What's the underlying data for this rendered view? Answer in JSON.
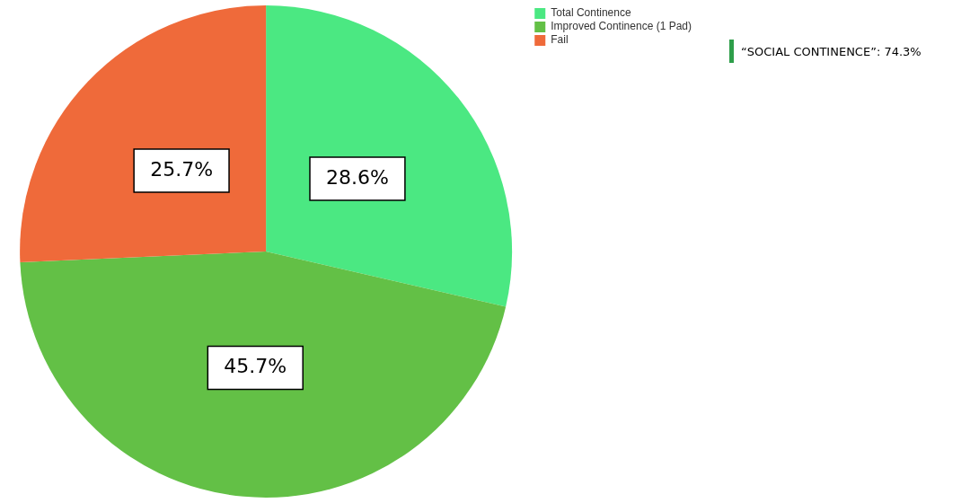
{
  "chart_data": {
    "type": "pie",
    "categories": [
      "Total Continence",
      "Improved Continence (1 Pad)",
      "Fail"
    ],
    "values": [
      28.6,
      45.7,
      25.7
    ],
    "colors": [
      "#4be882",
      "#63c046",
      "#ef6a3a"
    ],
    "value_labels": [
      "28.6%",
      "45.7%",
      "25.7%"
    ],
    "legend": "top right",
    "annotations": [
      "“SOCIAL CONTINENCE”: 74.3%"
    ]
  }
}
